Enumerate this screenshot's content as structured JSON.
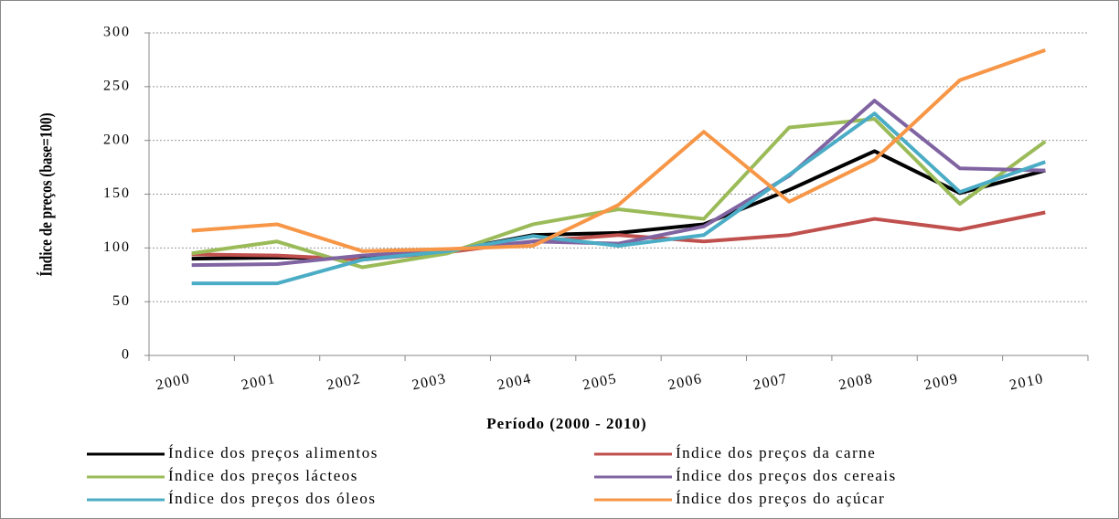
{
  "chart_data": {
    "type": "line",
    "x_label": "Período (2000 - 2010)",
    "y_label": "Índice de preços (base=100)",
    "categories": [
      "2000",
      "2001",
      "2002",
      "2003",
      "2004",
      "2005",
      "2006",
      "2007",
      "2008",
      "2009",
      "2010"
    ],
    "series": [
      {
        "name": "Índice dos preços alimentos",
        "color": "#000000",
        "values": [
          90,
          91,
          90,
          97,
          112,
          114,
          122,
          154,
          190,
          151,
          172
        ]
      },
      {
        "name": "Índice dos preços da carne",
        "color": "#c0504d",
        "values": [
          94,
          93,
          89,
          96,
          106,
          112,
          106,
          112,
          127,
          117,
          133
        ]
      },
      {
        "name": "Índice dos preços lácteos",
        "color": "#9bbb59",
        "values": [
          95,
          106,
          82,
          95,
          122,
          136,
          127,
          212,
          220,
          141,
          199
        ]
      },
      {
        "name": "Índice dos preços dos cereais",
        "color": "#8064a2",
        "values": [
          84,
          85,
          93,
          98,
          106,
          104,
          120,
          167,
          237,
          174,
          172
        ]
      },
      {
        "name": "Índice dos preços dos óleos",
        "color": "#4bacc6",
        "values": [
          67,
          67,
          89,
          97,
          111,
          102,
          112,
          168,
          225,
          152,
          180
        ]
      },
      {
        "name": "Índice dos preços do açúcar",
        "color": "#f79646",
        "values": [
          116,
          122,
          97,
          99,
          102,
          140,
          208,
          143,
          182,
          256,
          284
        ]
      }
    ],
    "ylim": [
      0,
      300
    ],
    "yticks": [
      0,
      50,
      100,
      150,
      200,
      250,
      300
    ],
    "grid": true,
    "legend": "bottom"
  }
}
